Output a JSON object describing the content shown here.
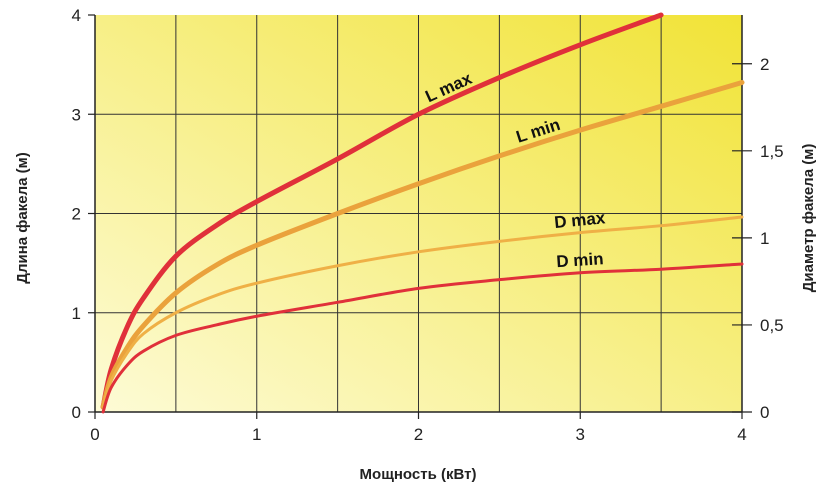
{
  "chart_data": {
    "type": "line",
    "xlabel": "Мощность (кВт)",
    "ylabel": "Длина факела (м)",
    "y2label": "Диаметр факела (м)",
    "xlim": [
      0,
      4
    ],
    "ylim": [
      0,
      4
    ],
    "y2lim": [
      0,
      2.28
    ],
    "x_ticks": [
      "0",
      "1",
      "2",
      "3",
      "4"
    ],
    "y_ticks": [
      "0",
      "1",
      "2",
      "3",
      "4"
    ],
    "y2_ticks": [
      {
        "label": "0",
        "value": 0
      },
      {
        "label": "0,5",
        "value": 0.5
      },
      {
        "label": "1",
        "value": 1
      },
      {
        "label": "1,5",
        "value": 1.5
      },
      {
        "label": "2",
        "value": 2
      }
    ],
    "grid": true,
    "background": {
      "light": "#fdfbd6",
      "dark": "#f1e336"
    },
    "series": [
      {
        "name": "L max",
        "axis": "left",
        "color": "#e0303a",
        "width": 5,
        "x": [
          0.05,
          0.1,
          0.2,
          0.3,
          0.5,
          0.75,
          1,
          1.5,
          2,
          2.5,
          3,
          3.5
        ],
        "y": [
          0.05,
          0.43,
          0.86,
          1.15,
          1.57,
          1.88,
          2.12,
          2.55,
          3.0,
          3.37,
          3.7,
          4.0
        ]
      },
      {
        "name": "L min",
        "axis": "left",
        "color": "#eaa23c",
        "width": 5,
        "x": [
          0.05,
          0.1,
          0.2,
          0.3,
          0.5,
          0.75,
          1,
          1.5,
          2,
          2.5,
          3,
          3.5,
          4
        ],
        "y": [
          0.05,
          0.35,
          0.65,
          0.87,
          1.2,
          1.48,
          1.68,
          2.0,
          2.3,
          2.58,
          2.84,
          3.08,
          3.32
        ]
      },
      {
        "name": "D max",
        "axis": "right",
        "color": "#efb046",
        "width": 3,
        "x": [
          0.05,
          0.1,
          0.2,
          0.3,
          0.5,
          0.75,
          1,
          1.5,
          2,
          2.5,
          3,
          3.5,
          4
        ],
        "y": [
          0.03,
          0.18,
          0.34,
          0.45,
          0.57,
          0.67,
          0.74,
          0.84,
          0.92,
          0.98,
          1.03,
          1.07,
          1.12
        ]
      },
      {
        "name": "D min",
        "axis": "right",
        "color": "#e0303a",
        "width": 3,
        "x": [
          0.05,
          0.1,
          0.2,
          0.3,
          0.5,
          0.75,
          1,
          1.5,
          2,
          2.5,
          3,
          3.5,
          4
        ],
        "y": [
          0.0,
          0.14,
          0.27,
          0.35,
          0.44,
          0.5,
          0.55,
          0.63,
          0.71,
          0.76,
          0.8,
          0.82,
          0.85
        ]
      }
    ],
    "curve_labels": [
      {
        "text": "L max",
        "series": "L max",
        "at_x": 2.2
      },
      {
        "text": "L min",
        "series": "L min",
        "at_x": 2.75
      },
      {
        "text": "D max",
        "series": "D max",
        "at_x": 3.0
      },
      {
        "text": "D min",
        "series": "D min",
        "at_x": 3.0
      }
    ]
  }
}
